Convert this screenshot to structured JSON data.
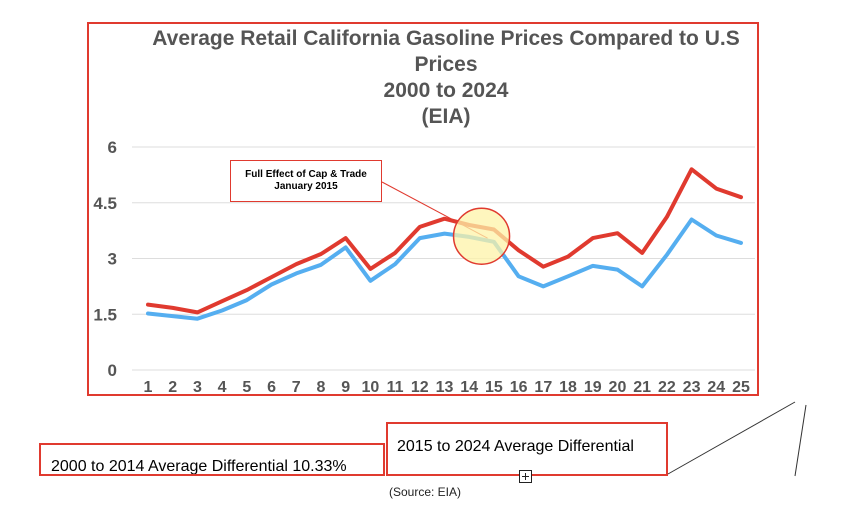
{
  "chart_data": {
    "type": "line",
    "title": [
      "Average Retail California Gasoline Prices Compared to U.S",
      "Prices",
      "2000 to 2024",
      "(EIA)"
    ],
    "xlabel": "",
    "ylabel": "",
    "categories": [
      "1",
      "2",
      "3",
      "4",
      "5",
      "6",
      "7",
      "8",
      "9",
      "10",
      "11",
      "12",
      "13",
      "14",
      "15",
      "16",
      "17",
      "18",
      "19",
      "20",
      "21",
      "22",
      "23",
      "24",
      "25"
    ],
    "y_ticks": [
      "0",
      "1.5",
      "3",
      "4.5",
      "6"
    ],
    "ylim": [
      0,
      6
    ],
    "grid": true,
    "legend": "none",
    "series": [
      {
        "color": "#e03a2f",
        "values": [
          1.76,
          1.67,
          1.55,
          1.85,
          2.15,
          2.5,
          2.85,
          3.12,
          3.55,
          2.72,
          3.15,
          3.85,
          4.07,
          3.9,
          3.78,
          3.22,
          2.78,
          3.05,
          3.55,
          3.68,
          3.15,
          4.12,
          5.4,
          4.88,
          4.65
        ]
      },
      {
        "color": "#55aef0",
        "values": [
          1.52,
          1.45,
          1.38,
          1.6,
          1.88,
          2.3,
          2.6,
          2.83,
          3.3,
          2.4,
          2.85,
          3.55,
          3.67,
          3.58,
          3.45,
          2.52,
          2.25,
          2.52,
          2.8,
          2.7,
          2.25,
          3.1,
          4.05,
          3.62,
          3.42
        ]
      }
    ],
    "annotation": {
      "text_line1": "Full Effect of Cap & Trade",
      "text_line2": "January 2015",
      "highlight_x": 14.5,
      "highlight_y": 3.6
    }
  },
  "boxes": {
    "box_2000_text": "2000 to 2014 Average Differential 10.33%",
    "box_2015_text": "2015 to 2024 Average Differential"
  },
  "source": "(Source: EIA)",
  "colors": {
    "frame": "#e03a2f",
    "california": "#e03a2f",
    "us": "#55aef0",
    "highlight_fill": "#fdf3a8",
    "grid": "#dddddd"
  }
}
